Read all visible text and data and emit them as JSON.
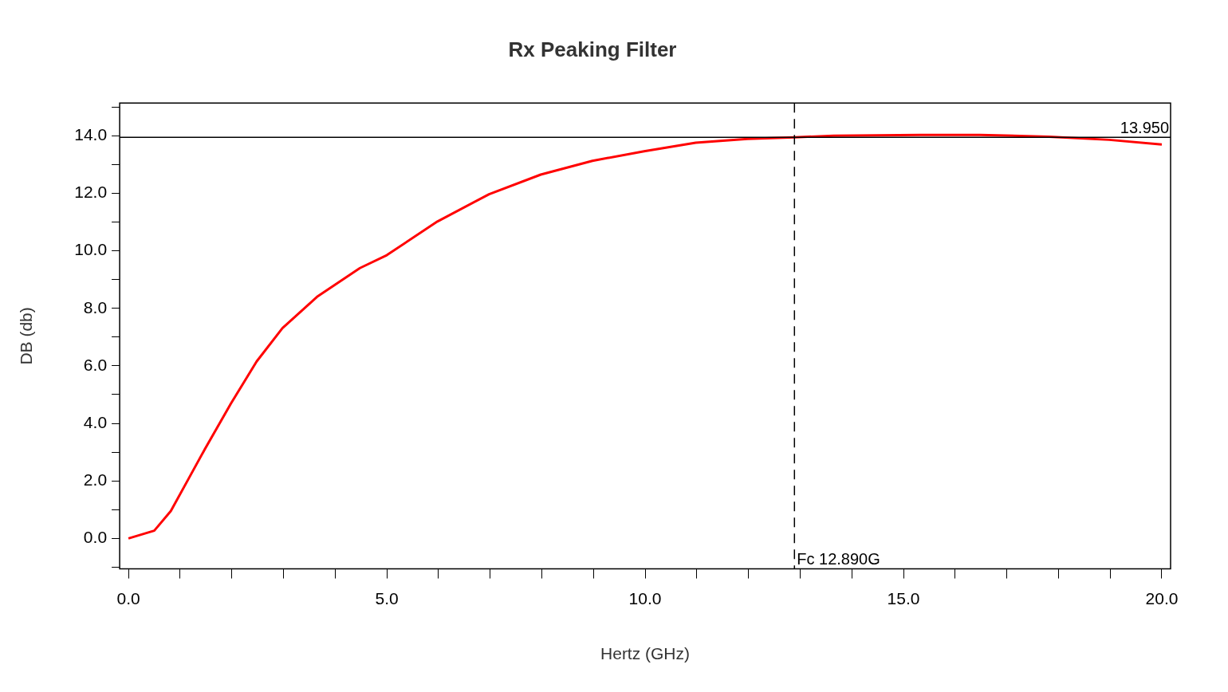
{
  "chart_data": {
    "type": "line",
    "title": "Rx Peaking Filter",
    "xlabel": "Hertz (GHz)",
    "ylabel": "DB (db)",
    "x": [
      0,
      0.5,
      0.82,
      1.15,
      1.48,
      1.98,
      2.48,
      2.98,
      3.65,
      4.48,
      5.0,
      5.98,
      6.98,
      7.98,
      8.98,
      9.98,
      10.98,
      11.98,
      12.9,
      13.65,
      15.32,
      16.48,
      17.82,
      18.98,
      20.0
    ],
    "series": [
      {
        "color": "#ff0000",
        "values": [
          0,
          0.27,
          0.95,
          2.03,
          3.11,
          4.68,
          6.15,
          7.31,
          8.4,
          9.4,
          9.85,
          11.02,
          11.97,
          12.65,
          13.13,
          13.46,
          13.76,
          13.89,
          13.95,
          14.0,
          14.03,
          14.03,
          13.97,
          13.86,
          13.7
        ]
      }
    ],
    "xlim": [
      -0.17,
      20.17
    ],
    "ylim": [
      -1.06,
      15.14
    ],
    "xticks": [
      {
        "value": 0,
        "label": "0.0"
      },
      {
        "value": 1,
        "label": null
      },
      {
        "value": 2,
        "label": null
      },
      {
        "value": 3,
        "label": null
      },
      {
        "value": 4,
        "label": null
      },
      {
        "value": 5,
        "label": "5.0"
      },
      {
        "value": 6,
        "label": null
      },
      {
        "value": 7,
        "label": null
      },
      {
        "value": 8,
        "label": null
      },
      {
        "value": 9,
        "label": null
      },
      {
        "value": 10,
        "label": "10.0"
      },
      {
        "value": 11,
        "label": null
      },
      {
        "value": 12,
        "label": null
      },
      {
        "value": 13,
        "label": null
      },
      {
        "value": 14,
        "label": null
      },
      {
        "value": 15,
        "label": "15.0"
      },
      {
        "value": 16,
        "label": null
      },
      {
        "value": 17,
        "label": null
      },
      {
        "value": 18,
        "label": null
      },
      {
        "value": 19,
        "label": null
      },
      {
        "value": 20,
        "label": "20.0"
      }
    ],
    "yticks": [
      {
        "value": -1,
        "label": null
      },
      {
        "value": 0,
        "label": "0.0"
      },
      {
        "value": 1,
        "label": null
      },
      {
        "value": 2,
        "label": "2.0"
      },
      {
        "value": 3,
        "label": null
      },
      {
        "value": 4,
        "label": "4.0"
      },
      {
        "value": 5,
        "label": null
      },
      {
        "value": 6,
        "label": "6.0"
      },
      {
        "value": 7,
        "label": null
      },
      {
        "value": 8,
        "label": "8.0"
      },
      {
        "value": 9,
        "label": null
      },
      {
        "value": 10,
        "label": "10.0"
      },
      {
        "value": 11,
        "label": null
      },
      {
        "value": 12,
        "label": "12.0"
      },
      {
        "value": 13,
        "label": null
      },
      {
        "value": 14,
        "label": "14.0"
      },
      {
        "value": 15,
        "label": null
      }
    ],
    "ref_lines": [
      {
        "axis": "y",
        "value": 13.95,
        "label": "13.950",
        "color": "#000000",
        "line_style": "solid"
      },
      {
        "axis": "x",
        "value": 12.89,
        "label": "Fc 12.890G",
        "color": "#000000",
        "line_style": "dashed"
      }
    ],
    "grid": false,
    "legend": false,
    "marker": "none"
  }
}
